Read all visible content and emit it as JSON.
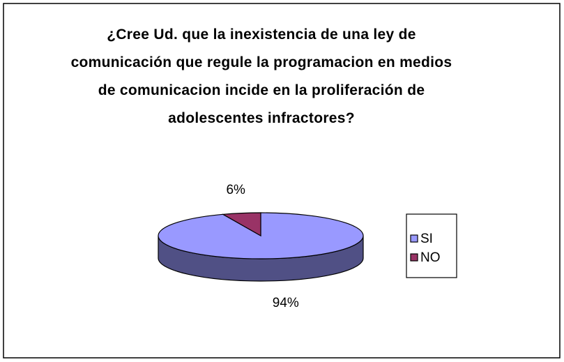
{
  "chart_data": {
    "type": "pie3d",
    "title": "¿Cree Ud. que la inexistencia de una ley de comunicación que regule la programacion en medios de comunicacion incide en la proliferación de adolescentes infractores?",
    "categories": [
      "SI",
      "NO"
    ],
    "values": [
      94,
      6
    ],
    "value_labels": [
      "94%",
      "6%"
    ],
    "colors": [
      "#9999ff",
      "#993366"
    ],
    "legend": "right"
  }
}
